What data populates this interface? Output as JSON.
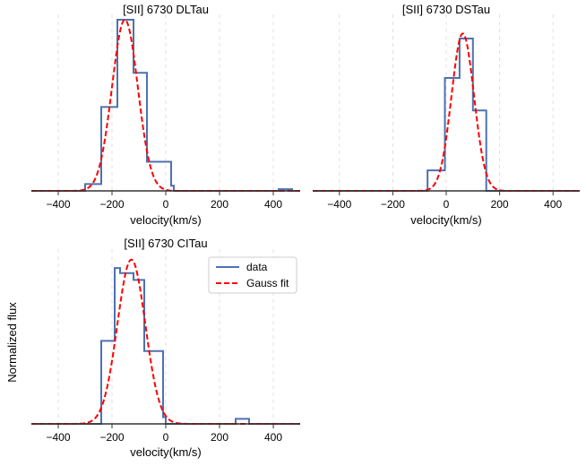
{
  "figure": {
    "ylabel": "Normalized flux"
  },
  "chart_data": [
    {
      "type": "line",
      "title": "[SII] 6730 DLTau",
      "xlabel": "velocity(km/s)",
      "ylabel": "",
      "xlim": [
        -500,
        500
      ],
      "ylim": [
        0,
        1.0
      ],
      "xticks": [
        -400,
        -200,
        0,
        200,
        400
      ],
      "xtick_labels": [
        "−400",
        "−200",
        "0",
        "200",
        "400"
      ],
      "grid": "vertical dashed",
      "colors": {
        "data": "#4c72b0",
        "fit": "#ff0000"
      },
      "series": [
        {
          "kind": "step",
          "x_edges": [
            -500,
            -300,
            -260,
            -240,
            -190,
            -180,
            -130,
            -120,
            -80,
            -70,
            -30,
            20,
            30,
            420,
            470,
            500
          ],
          "values": [
            0,
            0.04,
            0.04,
            0.49,
            0.49,
            1.0,
            1.0,
            0.69,
            0.69,
            0.17,
            0.17,
            0.03,
            0,
            0.01,
            0
          ],
          "name": ""
        },
        {
          "kind": "gauss",
          "amplitude": 1.0,
          "center": -152,
          "sigma": 48,
          "name": ""
        }
      ]
    },
    {
      "type": "line",
      "title": "[SII] 6730 DSTau",
      "xlabel": "velocity(km/s)",
      "ylabel": "",
      "xlim": [
        -500,
        500
      ],
      "ylim": [
        0,
        1.0
      ],
      "xticks": [
        -400,
        -200,
        0,
        200,
        400
      ],
      "xtick_labels": [
        "−400",
        "−200",
        "0",
        "200",
        "400"
      ],
      "grid": "vertical dashed",
      "colors": {
        "data": "#4c72b0",
        "fit": "#ff0000"
      },
      "series": [
        {
          "kind": "step",
          "x_edges": [
            -500,
            -70,
            -5,
            0,
            50,
            100,
            150,
            500
          ],
          "values": [
            0,
            0.12,
            0.66,
            0.66,
            0.89,
            0.47,
            0
          ],
          "name": ""
        },
        {
          "kind": "gauss",
          "amplitude": 0.92,
          "center": 62,
          "sigma": 42,
          "name": ""
        }
      ]
    },
    {
      "type": "line",
      "title": "[SII] 6730 CITau",
      "xlabel": "velocity(km/s)",
      "ylabel": "",
      "xlim": [
        -500,
        500
      ],
      "ylim": [
        0,
        1.0
      ],
      "xticks": [
        -400,
        -200,
        0,
        200,
        400
      ],
      "xtick_labels": [
        "−400",
        "−200",
        "0",
        "200",
        "400"
      ],
      "grid": "vertical dashed",
      "colors": {
        "data": "#4c72b0",
        "fit": "#ff0000"
      },
      "legend": {
        "placement": "upper-right",
        "entries": [
          "data",
          "Gauss fit"
        ]
      },
      "series": [
        {
          "kind": "step",
          "x_edges": [
            -500,
            -240,
            -190,
            -170,
            -120,
            -80,
            -10,
            0,
            260,
            310,
            500
          ],
          "values": [
            0,
            0.49,
            0.92,
            0.89,
            0.85,
            0.43,
            0.04,
            0,
            0.03,
            0
          ],
          "name": "data"
        },
        {
          "kind": "gauss",
          "amplitude": 0.97,
          "center": -128,
          "sigma": 52,
          "name": "Gauss fit"
        }
      ]
    }
  ]
}
